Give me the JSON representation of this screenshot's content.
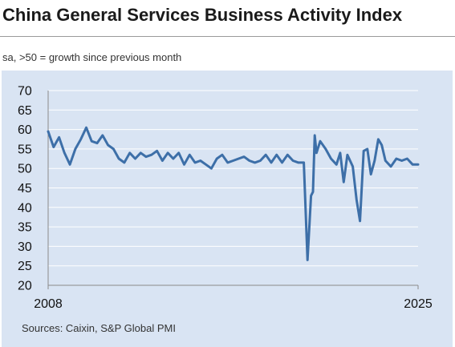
{
  "title": "China General Services Business Activity Index",
  "subtitle": "sa, >50 = growth since previous month",
  "source": "Sources: Caixin, S&P Global PMI",
  "colors": {
    "panel_background": "#d9e4f3",
    "line": "#3d6fa8",
    "gridline": "#ffffff",
    "axis": "#8a8a8a"
  },
  "chart_data": {
    "type": "line",
    "title": "China General Services Business Activity Index",
    "subtitle": "sa, >50 = growth since previous month",
    "xlabel": "",
    "ylabel": "",
    "xlim": [
      2008,
      2025
    ],
    "ylim": [
      20,
      70
    ],
    "y_ticks": [
      "20",
      "25",
      "30",
      "35",
      "40",
      "45",
      "50",
      "55",
      "60",
      "65",
      "70"
    ],
    "x_ticks": [
      "2008",
      "2025"
    ],
    "grid": true,
    "series": [
      {
        "x": [
          2008.0,
          2008.25,
          2008.5,
          2008.75,
          2009.0,
          2009.25,
          2009.5,
          2009.75,
          2010.0,
          2010.25,
          2010.5,
          2010.75,
          2011.0,
          2011.25,
          2011.5,
          2011.75,
          2012.0,
          2012.25,
          2012.5,
          2012.75,
          2013.0,
          2013.25,
          2013.5,
          2013.75,
          2014.0,
          2014.25,
          2014.5,
          2014.75,
          2015.0,
          2015.25,
          2015.5,
          2015.75,
          2016.0,
          2016.25,
          2016.5,
          2016.75,
          2017.0,
          2017.25,
          2017.5,
          2017.75,
          2018.0,
          2018.25,
          2018.5,
          2018.75,
          2019.0,
          2019.25,
          2019.5,
          2019.75,
          2019.92,
          2020.08,
          2020.17,
          2020.25,
          2020.33,
          2020.5,
          2020.75,
          2021.0,
          2021.25,
          2021.42,
          2021.58,
          2021.75,
          2022.0,
          2022.17,
          2022.33,
          2022.5,
          2022.67,
          2022.83,
          2023.0,
          2023.17,
          2023.33,
          2023.5,
          2023.75,
          2024.0,
          2024.25,
          2024.5,
          2024.75,
          2025.0
        ],
        "values": [
          59.5,
          55.5,
          58,
          54,
          51,
          55,
          57.5,
          60.5,
          57,
          56.5,
          58.5,
          56,
          55,
          52.5,
          51.5,
          54,
          52.5,
          54,
          53,
          53.5,
          54.5,
          52,
          54,
          52.5,
          54,
          51,
          53.5,
          51.5,
          52,
          51,
          50,
          52.5,
          53.5,
          51.5,
          52,
          52.5,
          53,
          52,
          51.5,
          52,
          53.5,
          51.5,
          53.5,
          51.5,
          53.5,
          52,
          51.5,
          51.5,
          26.5,
          43,
          44,
          58.5,
          54,
          57,
          55,
          52.5,
          51,
          54,
          46.5,
          53.5,
          50.5,
          42,
          36.5,
          54.5,
          55,
          48.5,
          52,
          57.5,
          56,
          52,
          50.5,
          52.5,
          52,
          52.5,
          51,
          51
        ]
      }
    ]
  }
}
